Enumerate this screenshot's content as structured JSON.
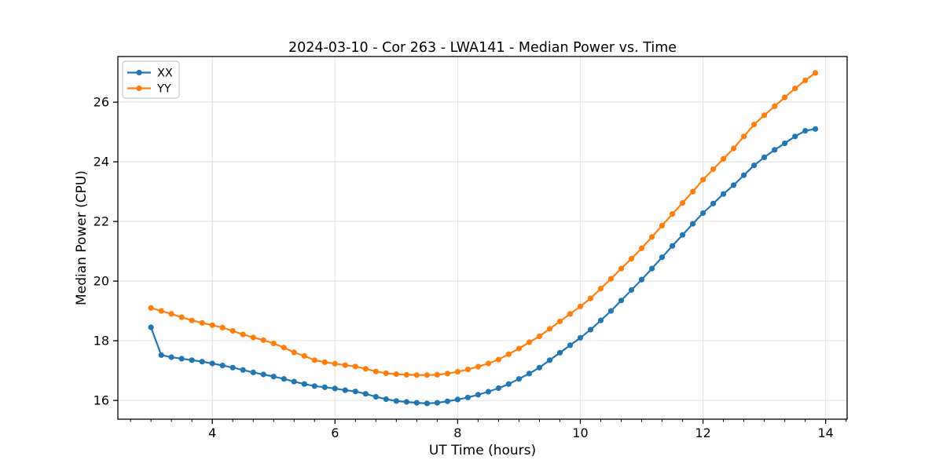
{
  "title": "2024-03-10 - Cor 263 - LWA141 - Median Power vs. Time",
  "colors": {
    "series_xx": "#1f77b4",
    "series_yy": "#ff7f0e",
    "grid": "#e5e5e5",
    "frame": "#000000",
    "legend_border": "#cccccc",
    "background": "#ffffff"
  },
  "legend": {
    "position": "upper-left",
    "entries": [
      "XX",
      "YY"
    ]
  },
  "chart_data": {
    "type": "line",
    "title": "2024-03-10 - Cor 263 - LWA141 - Median Power vs. Time",
    "xlabel": "UT Time (hours)",
    "ylabel": "Median Power (CPU)",
    "xlim": [
      2.46,
      14.35
    ],
    "ylim": [
      15.37,
      27.53
    ],
    "x_major_ticks": [
      4,
      6,
      8,
      10,
      12,
      14
    ],
    "x_minor_step": 0.3333,
    "y_major_ticks": [
      16,
      18,
      20,
      22,
      24,
      26
    ],
    "grid": true,
    "legend_position": "upper-left",
    "marker": "circle",
    "x": [
      3.0,
      3.167,
      3.333,
      3.5,
      3.667,
      3.833,
      4.0,
      4.167,
      4.333,
      4.5,
      4.667,
      4.833,
      5.0,
      5.167,
      5.333,
      5.5,
      5.667,
      5.833,
      6.0,
      6.167,
      6.333,
      6.5,
      6.667,
      6.833,
      7.0,
      7.167,
      7.333,
      7.5,
      7.667,
      7.833,
      8.0,
      8.167,
      8.333,
      8.5,
      8.667,
      8.833,
      9.0,
      9.167,
      9.333,
      9.5,
      9.667,
      9.833,
      10.0,
      10.167,
      10.333,
      10.5,
      10.667,
      10.833,
      11.0,
      11.167,
      11.333,
      11.5,
      11.667,
      11.833,
      12.0,
      12.167,
      12.333,
      12.5,
      12.667,
      12.833,
      13.0,
      13.167,
      13.333,
      13.5,
      13.667,
      13.833
    ],
    "series": [
      {
        "name": "XX",
        "color": "#1f77b4",
        "values": [
          18.45,
          17.52,
          17.45,
          17.4,
          17.35,
          17.3,
          17.24,
          17.17,
          17.1,
          17.02,
          16.94,
          16.87,
          16.8,
          16.72,
          16.63,
          16.55,
          16.48,
          16.44,
          16.4,
          16.34,
          16.3,
          16.22,
          16.12,
          16.04,
          15.98,
          15.95,
          15.92,
          15.9,
          15.92,
          15.97,
          16.03,
          16.1,
          16.19,
          16.29,
          16.41,
          16.55,
          16.72,
          16.9,
          17.1,
          17.35,
          17.6,
          17.85,
          18.1,
          18.37,
          18.68,
          19.0,
          19.35,
          19.7,
          20.05,
          20.42,
          20.8,
          21.18,
          21.55,
          21.92,
          22.28,
          22.6,
          22.92,
          23.22,
          23.55,
          23.88,
          24.15,
          24.4,
          24.62,
          24.85,
          25.04,
          25.1
        ]
      },
      {
        "name": "YY",
        "color": "#ff7f0e",
        "values": [
          19.1,
          19.0,
          18.9,
          18.79,
          18.68,
          18.6,
          18.52,
          18.44,
          18.33,
          18.21,
          18.11,
          18.02,
          17.91,
          17.77,
          17.61,
          17.49,
          17.35,
          17.28,
          17.23,
          17.18,
          17.14,
          17.06,
          16.97,
          16.91,
          16.88,
          16.86,
          16.85,
          16.85,
          16.86,
          16.9,
          16.96,
          17.04,
          17.13,
          17.24,
          17.37,
          17.55,
          17.74,
          17.95,
          18.15,
          18.4,
          18.65,
          18.9,
          19.15,
          19.42,
          19.75,
          20.08,
          20.42,
          20.75,
          21.1,
          21.48,
          21.86,
          22.25,
          22.62,
          23.0,
          23.4,
          23.75,
          24.1,
          24.45,
          24.85,
          25.25,
          25.56,
          25.86,
          26.16,
          26.46,
          26.73,
          26.98
        ]
      }
    ]
  }
}
